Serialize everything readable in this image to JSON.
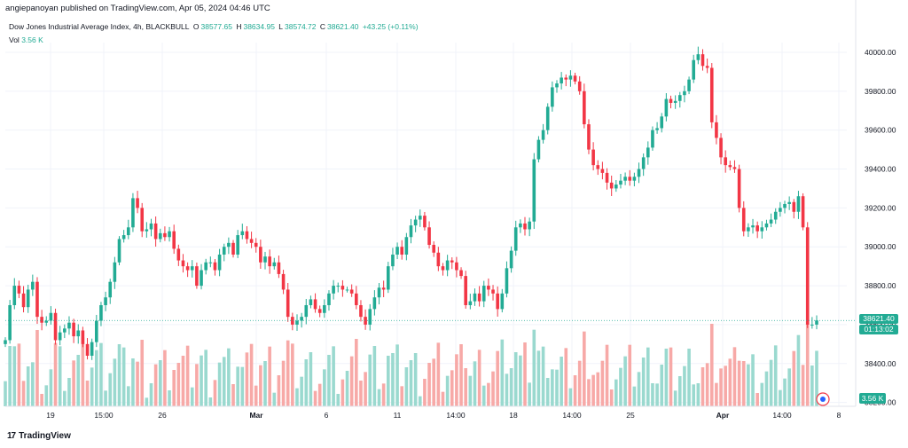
{
  "header": {
    "published_text": "angiepanoyan published on TradingView.com, Apr 05, 2024 04:46 UTC"
  },
  "legend": {
    "symbol": "Dow Jones Industrial Average Index, 4h, BLACKBULL",
    "o_label": "O",
    "o_value": "38577.65",
    "h_label": "H",
    "h_value": "38634.95",
    "l_label": "L",
    "l_value": "38574.72",
    "c_label": "C",
    "c_value": "38621.40",
    "change": "+43.25 (+0.11%)",
    "vol_label": "Vol",
    "vol_value": "3.56 K"
  },
  "price_tag": {
    "price": "38621.40",
    "countdown": "01:13:02"
  },
  "volume_tag": "3.56 K",
  "footer": {
    "brand": "TradingView",
    "logo_text": "17"
  },
  "colors": {
    "up": "#22ab94",
    "down": "#f23645",
    "up_vol": "#9ad9cf",
    "down_vol": "#f7a9a7",
    "grid": "#f0f3fa",
    "axis_text": "#131722"
  },
  "chart_data": {
    "type": "candlestick",
    "y_ticks": [
      "40000.00",
      "39800.00",
      "39600.00",
      "39400.00",
      "39200.00",
      "39000.00",
      "38800.00",
      "38600.00",
      "38400.00",
      "38200.00"
    ],
    "ylim": [
      38180,
      40050
    ],
    "x_ticks": [
      "19",
      "15:00",
      "26",
      "Mar",
      "6",
      "11",
      "14:00",
      "18",
      "14:00",
      "25",
      "Apr",
      "14:00",
      "8"
    ],
    "series": [
      {
        "name": "price",
        "close_path": [
          38520,
          38700,
          38800,
          38760,
          38690,
          38780,
          38820,
          38640,
          38610,
          38620,
          38660,
          38520,
          38560,
          38580,
          38610,
          38540,
          38570,
          38500,
          38440,
          38510,
          38620,
          38700,
          38740,
          38820,
          38920,
          39040,
          39060,
          39100,
          39250,
          39200,
          39080,
          39090,
          39120,
          39040,
          39070,
          39050,
          39080,
          38990,
          38930,
          38900,
          38880,
          38900,
          38800,
          38880,
          38920,
          38920,
          38880,
          38960,
          39000,
          39020,
          38960,
          39060,
          39080,
          39040,
          39020,
          39000,
          38920,
          38950,
          38900,
          38920,
          38860,
          38780,
          38640,
          38600,
          38620,
          38640,
          38700,
          38730,
          38680,
          38660,
          38700,
          38760,
          38800,
          38800,
          38780,
          38780,
          38760,
          38700,
          38640,
          38600,
          38680,
          38740,
          38790,
          38780,
          38900,
          38960,
          39000,
          38960,
          39050,
          39110,
          39140,
          39160,
          39100,
          39010,
          38970,
          38900,
          38880,
          38930,
          38920,
          38880,
          38850,
          38700,
          38720,
          38760,
          38720,
          38800,
          38780,
          38760,
          38680,
          38760,
          38890,
          38980,
          39100,
          39120,
          39090,
          39130,
          39450,
          39550,
          39600,
          39720,
          39820,
          39840,
          39870,
          39860,
          39880,
          39850,
          39800,
          39630,
          39500,
          39420,
          39400,
          39380,
          39330,
          39300,
          39320,
          39340,
          39360,
          39340,
          39360,
          39400,
          39460,
          39510,
          39600,
          39610,
          39670,
          39760,
          39740,
          39750,
          39780,
          39800,
          39860,
          39960,
          39990,
          39930,
          39920,
          39640,
          39560,
          39460,
          39420,
          39410,
          39400,
          39200,
          39080,
          39100,
          39110,
          39080,
          39100,
          39120,
          39140,
          39180,
          39200,
          39220,
          39230,
          39180,
          39260,
          39100,
          38600,
          38600,
          38621.4
        ]
      }
    ],
    "volume": {
      "unit": "K",
      "last": 3.56
    }
  }
}
